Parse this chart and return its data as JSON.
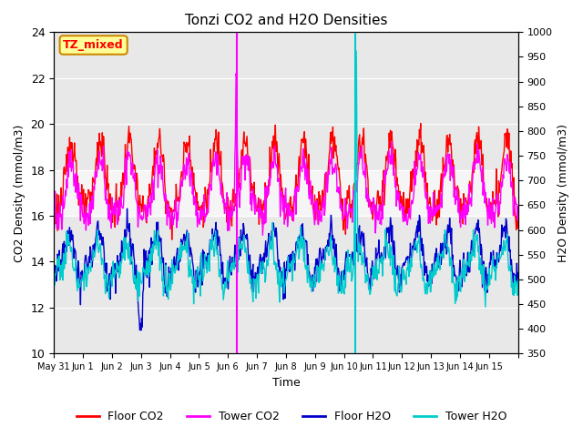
{
  "title": "Tonzi CO2 and H2O Densities",
  "xlabel": "Time",
  "ylabel_left": "CO2 Density (mmol/m3)",
  "ylabel_right": "H2O Density (mmol/m3)",
  "ylim_left": [
    10,
    24
  ],
  "ylim_right": [
    350,
    1000
  ],
  "yticks_left": [
    10,
    12,
    14,
    16,
    18,
    20,
    22,
    24
  ],
  "yticks_right": [
    350,
    400,
    450,
    500,
    550,
    600,
    650,
    700,
    750,
    800,
    850,
    900,
    950,
    1000
  ],
  "annotation_text": "TZ_mixed",
  "annotation_box_color": "#FFFF99",
  "annotation_box_edge": "#CC8800",
  "colors": {
    "floor_co2": "#FF0000",
    "tower_co2": "#FF00FF",
    "floor_h2o": "#0000CC",
    "tower_h2o": "#00CCCC"
  },
  "bg_color": "#E8E8E8",
  "white_band_ymin": 16,
  "white_band_ymax": 18,
  "vline_tower_co2_x": 6.3,
  "vline_tower_h2o_x": 10.4,
  "xtick_positions": [
    0,
    1,
    2,
    3,
    4,
    5,
    6,
    7,
    8,
    9,
    10,
    11,
    12,
    13,
    14,
    15,
    16
  ],
  "xtick_labels": [
    "May 31",
    "Jun 1",
    "Jun 2",
    "Jun 3",
    "Jun 4",
    "Jun 5",
    "Jun 6",
    "Jun 7",
    "Jun 8",
    "Jun 9",
    "Jun 10",
    "Jun 11",
    "Jun 12",
    "Jun 13",
    "Jun 14",
    "Jun 15",
    ""
  ],
  "legend_labels": [
    "Floor CO2",
    "Tower CO2",
    "Floor H2O",
    "Tower H2O"
  ],
  "linewidth": 1.0
}
